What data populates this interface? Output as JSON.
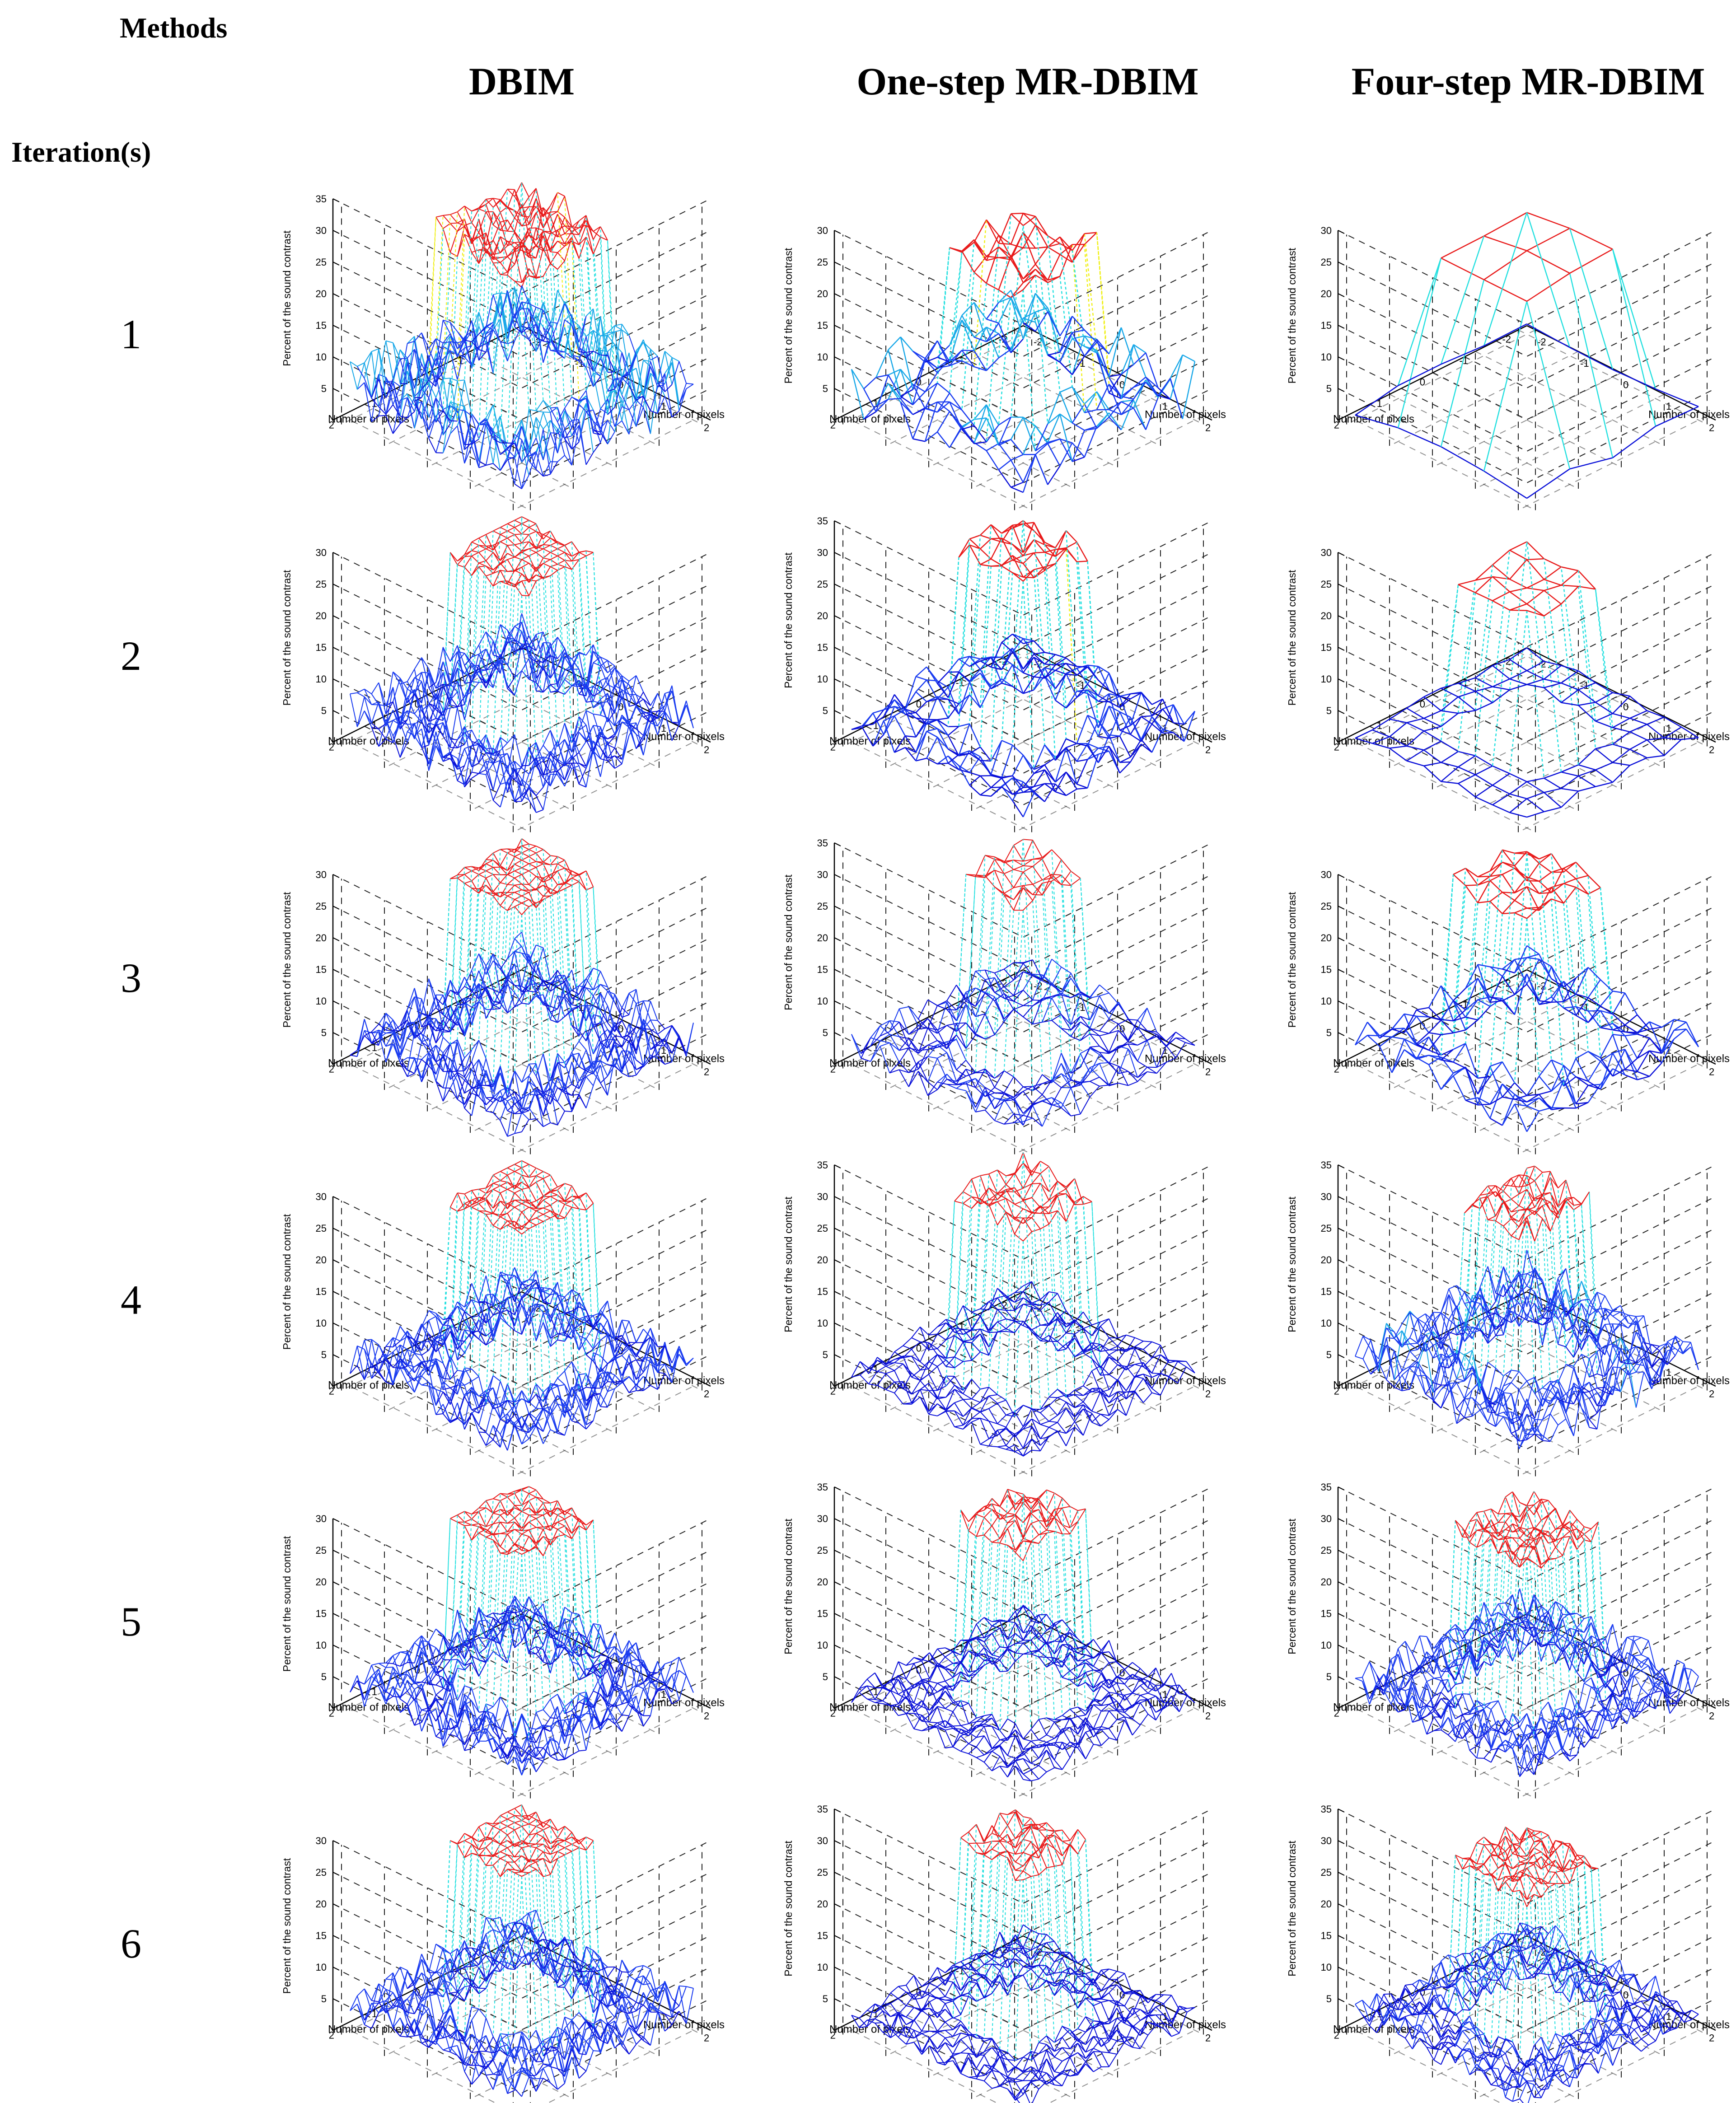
{
  "header": {
    "methods_label": "Methods",
    "iterations_label": "Iteration(s)"
  },
  "columns": [
    {
      "label": "DBIM"
    },
    {
      "label": "One-step MR-DBIM"
    },
    {
      "label": "Four-step MR-DBIM"
    }
  ],
  "rows": [
    {
      "label": "1"
    },
    {
      "label": "2"
    },
    {
      "label": "3"
    },
    {
      "label": "4"
    },
    {
      "label": "5"
    },
    {
      "label": "6"
    }
  ],
  "chart_data": {
    "type": "surface-mesh",
    "description_axes": {
      "zlabel": "Percent of the sound contrast",
      "xlabel": "Number of pixels",
      "ylabel": "Number of pixels",
      "x_ticks": [
        "-2",
        "-1",
        "0",
        "1",
        "2"
      ],
      "y_ticks": [
        "2",
        "1",
        "0",
        "-1",
        "-2"
      ],
      "z_ticks_35": [
        "5",
        "10",
        "15",
        "20",
        "25",
        "30",
        "35"
      ],
      "z_ticks_30": [
        "5",
        "10",
        "15",
        "20",
        "25",
        "30"
      ]
    },
    "grid": true,
    "colormap": [
      "#0a10d8",
      "#1a3cf0",
      "#1aa8e8",
      "#26e0e0",
      "#f0f018",
      "#f08a18",
      "#e81a1a"
    ],
    "plots": [
      {
        "method": "DBIM",
        "iteration": 1,
        "zlim": [
          0,
          35
        ],
        "peak": 30,
        "top_half_width": 1.0,
        "grid_n": 24,
        "noise": 0.55,
        "bg_level": 6
      },
      {
        "method": "One-step MR-DBIM",
        "iteration": 1,
        "zlim": [
          0,
          30
        ],
        "peak": 27,
        "top_half_width": 1.05,
        "grid_n": 14,
        "noise": 0.65,
        "bg_level": 5
      },
      {
        "method": "Four-step MR-DBIM",
        "iteration": 1,
        "zlim": [
          0,
          30
        ],
        "peak": 28,
        "top_half_width": 1.0,
        "grid_n": 4,
        "noise": 0.05,
        "bg_level": 3
      },
      {
        "method": "DBIM",
        "iteration": 2,
        "zlim": [
          0,
          30
        ],
        "peak": 31,
        "top_half_width": 0.95,
        "grid_n": 24,
        "noise": 0.45,
        "bg_level": 5
      },
      {
        "method": "One-step MR-DBIM",
        "iteration": 2,
        "zlim": [
          0,
          35
        ],
        "peak": 31,
        "top_half_width": 0.9,
        "grid_n": 16,
        "noise": 0.42,
        "bg_level": 4
      },
      {
        "method": "Four-step MR-DBIM",
        "iteration": 2,
        "zlim": [
          0,
          30
        ],
        "peak": 27,
        "top_half_width": 0.95,
        "grid_n": 10,
        "noise": 0.08,
        "bg_level": 2
      },
      {
        "method": "DBIM",
        "iteration": 3,
        "zlim": [
          0,
          30
        ],
        "peak": 31,
        "top_half_width": 0.9,
        "grid_n": 24,
        "noise": 0.4,
        "bg_level": 5
      },
      {
        "method": "One-step MR-DBIM",
        "iteration": 3,
        "zlim": [
          0,
          35
        ],
        "peak": 31,
        "top_half_width": 0.85,
        "grid_n": 18,
        "noise": 0.32,
        "bg_level": 4
      },
      {
        "method": "Four-step MR-DBIM",
        "iteration": 3,
        "zlim": [
          0,
          30
        ],
        "peak": 30,
        "top_half_width": 0.9,
        "grid_n": 14,
        "noise": 0.3,
        "bg_level": 5
      },
      {
        "method": "DBIM",
        "iteration": 4,
        "zlim": [
          0,
          30
        ],
        "peak": 31,
        "top_half_width": 0.9,
        "grid_n": 24,
        "noise": 0.38,
        "bg_level": 5
      },
      {
        "method": "One-step MR-DBIM",
        "iteration": 4,
        "zlim": [
          0,
          35
        ],
        "peak": 31,
        "top_half_width": 0.85,
        "grid_n": 20,
        "noise": 0.3,
        "bg_level": 3
      },
      {
        "method": "Four-step MR-DBIM",
        "iteration": 4,
        "zlim": [
          0,
          35
        ],
        "peak": 30,
        "top_half_width": 0.85,
        "grid_n": 22,
        "noise": 0.4,
        "bg_level": 6
      },
      {
        "method": "DBIM",
        "iteration": 5,
        "zlim": [
          0,
          30
        ],
        "peak": 31,
        "top_half_width": 0.9,
        "grid_n": 24,
        "noise": 0.36,
        "bg_level": 5
      },
      {
        "method": "One-step MR-DBIM",
        "iteration": 5,
        "zlim": [
          0,
          35
        ],
        "peak": 31,
        "top_half_width": 0.85,
        "grid_n": 22,
        "noise": 0.3,
        "bg_level": 3
      },
      {
        "method": "Four-step MR-DBIM",
        "iteration": 5,
        "zlim": [
          0,
          35
        ],
        "peak": 29,
        "top_half_width": 0.85,
        "grid_n": 24,
        "noise": 0.32,
        "bg_level": 5
      },
      {
        "method": "DBIM",
        "iteration": 6,
        "zlim": [
          0,
          30
        ],
        "peak": 31,
        "top_half_width": 0.9,
        "grid_n": 24,
        "noise": 0.36,
        "bg_level": 5
      },
      {
        "method": "One-step MR-DBIM",
        "iteration": 6,
        "zlim": [
          0,
          35
        ],
        "peak": 31,
        "top_half_width": 0.85,
        "grid_n": 22,
        "noise": 0.28,
        "bg_level": 3
      },
      {
        "method": "Four-step MR-DBIM",
        "iteration": 6,
        "zlim": [
          0,
          35
        ],
        "peak": 28,
        "top_half_width": 0.85,
        "grid_n": 24,
        "noise": 0.3,
        "bg_level": 4
      }
    ]
  }
}
